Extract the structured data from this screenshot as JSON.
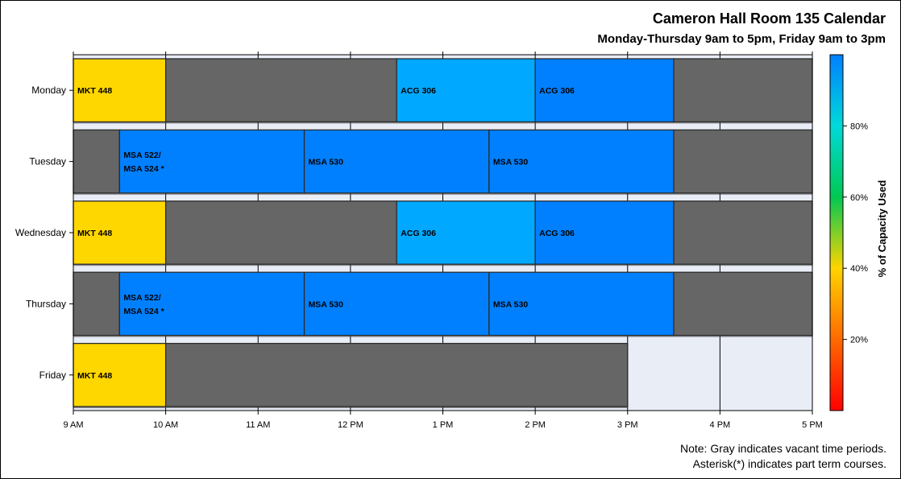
{
  "title": "Cameron Hall Room 135 Calendar",
  "subtitle": "Monday-Thursday 9am to 5pm, Friday 9am to 3pm",
  "notes": [
    "Note: Gray indicates vacant time periods.",
    "Asterisk(*) indicates part term courses."
  ],
  "colors": {
    "vacant": "#666666",
    "background": "#e9edf6",
    "low_capacity": "#ffd700",
    "mid_capacity": "#00a9ff",
    "high_capacity": "#0080ff"
  },
  "chart_data": {
    "type": "timeline",
    "ylabel": "",
    "xlabel": "",
    "x_range": [
      "9:00",
      "17:00"
    ],
    "x_ticks": [
      "9 AM",
      "10 AM",
      "11 AM",
      "12 PM",
      "1 PM",
      "2 PM",
      "3 PM",
      "4 PM",
      "5 PM"
    ],
    "days": [
      "Monday",
      "Tuesday",
      "Wednesday",
      "Thursday",
      "Friday"
    ],
    "grid": true,
    "colorbar": {
      "label": "% of Capacity Used",
      "ticks": [
        "20%",
        "40%",
        "60%",
        "80%"
      ],
      "tick_values": [
        20,
        40,
        60,
        80
      ],
      "range": [
        0,
        100
      ],
      "colors": [
        "#ff0000",
        "#ff6a00",
        "#ffd400",
        "#00c853",
        "#00d9d9",
        "#0080ff"
      ]
    },
    "events": [
      {
        "day": "Monday",
        "start": "9:00",
        "end": "10:00",
        "label": "MKT 448",
        "capacity_pct": 43
      },
      {
        "day": "Monday",
        "start": "10:00",
        "end": "12:30",
        "label": "",
        "vacant": true
      },
      {
        "day": "Monday",
        "start": "12:30",
        "end": "14:00",
        "label": "ACG 306",
        "capacity_pct": 92
      },
      {
        "day": "Monday",
        "start": "14:00",
        "end": "15:30",
        "label": "ACG 306",
        "capacity_pct": 98
      },
      {
        "day": "Monday",
        "start": "15:30",
        "end": "17:00",
        "label": "",
        "vacant": true
      },
      {
        "day": "Tuesday",
        "start": "9:00",
        "end": "9:30",
        "label": "",
        "vacant": true
      },
      {
        "day": "Tuesday",
        "start": "9:30",
        "end": "11:30",
        "label": "MSA 522/\nMSA 524 *",
        "capacity_pct": 98
      },
      {
        "day": "Tuesday",
        "start": "11:30",
        "end": "13:30",
        "label": "MSA 530",
        "capacity_pct": 98
      },
      {
        "day": "Tuesday",
        "start": "13:30",
        "end": "15:30",
        "label": "MSA 530",
        "capacity_pct": 98
      },
      {
        "day": "Tuesday",
        "start": "15:30",
        "end": "17:00",
        "label": "",
        "vacant": true
      },
      {
        "day": "Wednesday",
        "start": "9:00",
        "end": "10:00",
        "label": "MKT 448",
        "capacity_pct": 43
      },
      {
        "day": "Wednesday",
        "start": "10:00",
        "end": "12:30",
        "label": "",
        "vacant": true
      },
      {
        "day": "Wednesday",
        "start": "12:30",
        "end": "14:00",
        "label": "ACG 306",
        "capacity_pct": 92
      },
      {
        "day": "Wednesday",
        "start": "14:00",
        "end": "15:30",
        "label": "ACG 306",
        "capacity_pct": 98
      },
      {
        "day": "Wednesday",
        "start": "15:30",
        "end": "17:00",
        "label": "",
        "vacant": true
      },
      {
        "day": "Thursday",
        "start": "9:00",
        "end": "9:30",
        "label": "",
        "vacant": true
      },
      {
        "day": "Thursday",
        "start": "9:30",
        "end": "11:30",
        "label": "MSA 522/\nMSA 524 *",
        "capacity_pct": 98
      },
      {
        "day": "Thursday",
        "start": "11:30",
        "end": "13:30",
        "label": "MSA 530",
        "capacity_pct": 98
      },
      {
        "day": "Thursday",
        "start": "13:30",
        "end": "15:30",
        "label": "MSA 530",
        "capacity_pct": 98
      },
      {
        "day": "Thursday",
        "start": "15:30",
        "end": "17:00",
        "label": "",
        "vacant": true
      },
      {
        "day": "Friday",
        "start": "9:00",
        "end": "10:00",
        "label": "MKT 448",
        "capacity_pct": 43
      },
      {
        "day": "Friday",
        "start": "10:00",
        "end": "15:00",
        "label": "",
        "vacant": true
      }
    ]
  }
}
